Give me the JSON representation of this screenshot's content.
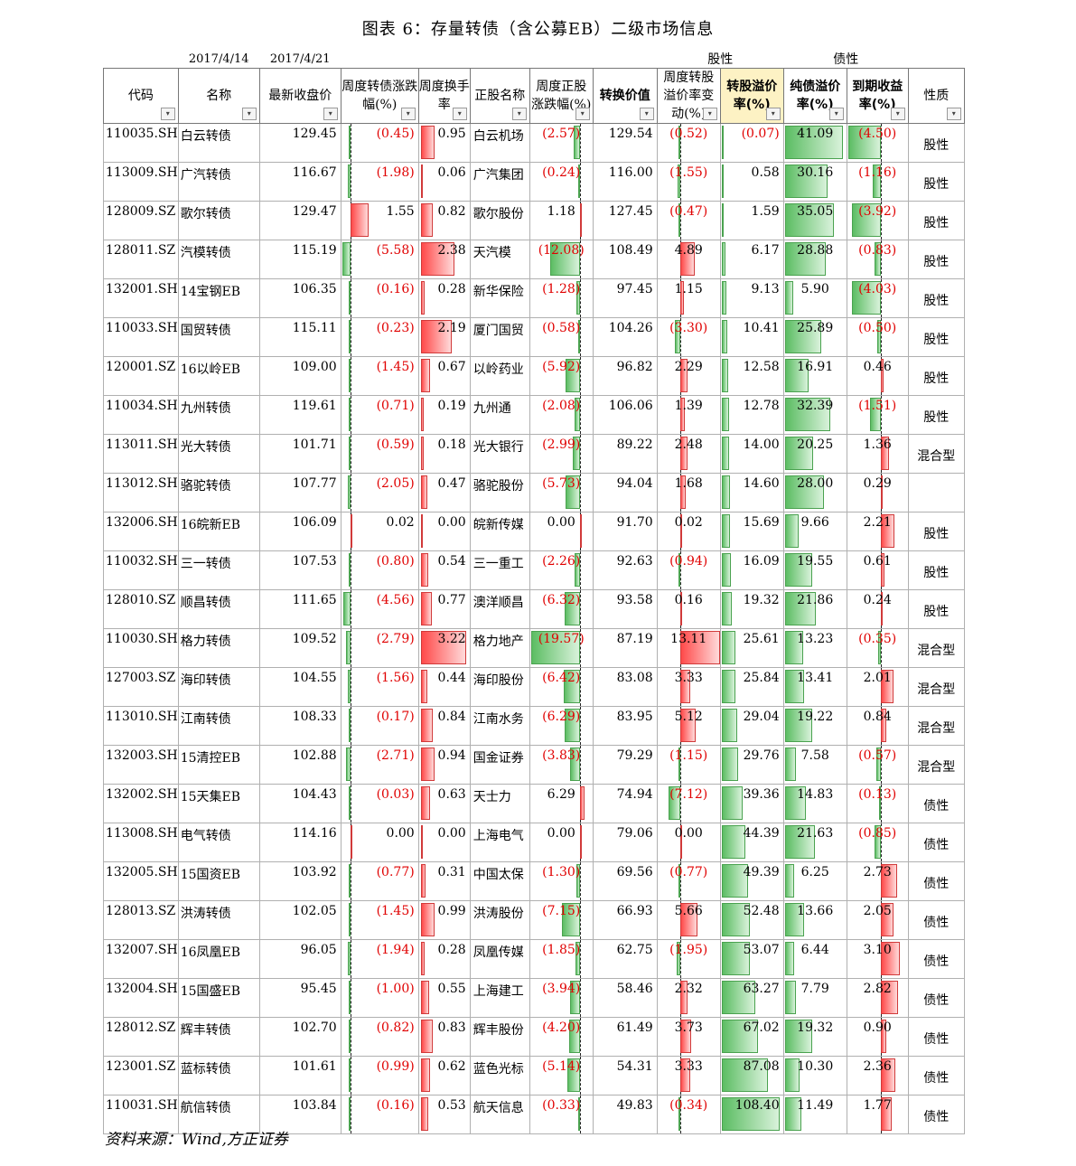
{
  "title": "图表 6：存量转债（含公募EB）二级市场信息",
  "source": "资料来源：Wind,方正证券",
  "dates": {
    "d1": "2017/4/14",
    "d2": "2017/4/21"
  },
  "groups": {
    "stock": "股性",
    "bond": "债性"
  },
  "headers": [
    "代码",
    "名称",
    "最新收盘价",
    "周度转债涨跌幅(%)",
    "周度换手率",
    "正股名称",
    "周度正股涨跌幅(%)",
    "转换价值",
    "周度转股溢价率变动(%)",
    "转股溢价率(%)",
    "纯债溢价率(%)",
    "到期收益率(%)",
    "性质"
  ],
  "rows": [
    {
      "code": "110035.SH",
      "name": "白云转债",
      "close": "129.45",
      "chg": "(0.45)",
      "turn": "0.95",
      "stock": "白云机场",
      "schg": "(2.57)",
      "conv": "129.54",
      "pchg": "(0.52)",
      "prem": "(0.07)",
      "bprem": "41.09",
      "ytm": "(4.50)",
      "nature": "股性"
    },
    {
      "code": "113009.SH",
      "name": "广汽转债",
      "close": "116.67",
      "chg": "(1.98)",
      "turn": "0.06",
      "stock": "广汽集团",
      "schg": "(0.24)",
      "conv": "116.00",
      "pchg": "(1.55)",
      "prem": "0.58",
      "bprem": "30.16",
      "ytm": "(1.16)",
      "nature": "股性"
    },
    {
      "code": "128009.SZ",
      "name": "歌尔转债",
      "close": "129.47",
      "chg": "1.55",
      "turn": "0.82",
      "stock": "歌尔股份",
      "schg": "1.18",
      "conv": "127.45",
      "pchg": "(0.47)",
      "prem": "1.59",
      "bprem": "35.05",
      "ytm": "(3.92)",
      "nature": "股性"
    },
    {
      "code": "128011.SZ",
      "name": "汽模转债",
      "close": "115.19",
      "chg": "(5.58)",
      "turn": "2.38",
      "stock": "天汽模",
      "schg": "(12.08)",
      "conv": "108.49",
      "pchg": "4.89",
      "prem": "6.17",
      "bprem": "28.88",
      "ytm": "(0.83)",
      "nature": "股性"
    },
    {
      "code": "132001.SH",
      "name": "14宝钢EB",
      "close": "106.35",
      "chg": "(0.16)",
      "turn": "0.28",
      "stock": "新华保险",
      "schg": "(1.28)",
      "conv": "97.45",
      "pchg": "1.15",
      "prem": "9.13",
      "bprem": "5.90",
      "ytm": "(4.03)",
      "nature": "股性"
    },
    {
      "code": "110033.SH",
      "name": "国贸转债",
      "close": "115.11",
      "chg": "(0.23)",
      "turn": "2.19",
      "stock": "厦门国贸",
      "schg": "(0.58)",
      "conv": "104.26",
      "pchg": "(3.30)",
      "prem": "10.41",
      "bprem": "25.89",
      "ytm": "(0.50)",
      "nature": "股性"
    },
    {
      "code": "120001.SZ",
      "name": "16以岭EB",
      "close": "109.00",
      "chg": "(1.45)",
      "turn": "0.67",
      "stock": "以岭药业",
      "schg": "(5.92)",
      "conv": "96.82",
      "pchg": "2.29",
      "prem": "12.58",
      "bprem": "16.91",
      "ytm": "0.46",
      "nature": "股性"
    },
    {
      "code": "110034.SH",
      "name": "九州转债",
      "close": "119.61",
      "chg": "(0.71)",
      "turn": "0.19",
      "stock": "九州通",
      "schg": "(2.08)",
      "conv": "106.06",
      "pchg": "1.39",
      "prem": "12.78",
      "bprem": "32.39",
      "ytm": "(1.51)",
      "nature": "股性"
    },
    {
      "code": "113011.SH",
      "name": "光大转债",
      "close": "101.71",
      "chg": "(0.59)",
      "turn": "0.18",
      "stock": "光大银行",
      "schg": "(2.99)",
      "conv": "89.22",
      "pchg": "2.48",
      "prem": "14.00",
      "bprem": "20.25",
      "ytm": "1.36",
      "nature": "混合型"
    },
    {
      "code": "113012.SH",
      "name": "骆驼转债",
      "close": "107.77",
      "chg": "(2.05)",
      "turn": "0.47",
      "stock": "骆驼股份",
      "schg": "(5.73)",
      "conv": "94.04",
      "pchg": "1.68",
      "prem": "14.60",
      "bprem": "28.00",
      "ytm": "0.29",
      "nature": ""
    },
    {
      "code": "132006.SH",
      "name": "16皖新EB",
      "close": "106.09",
      "chg": "0.02",
      "turn": "0.00",
      "stock": "皖新传媒",
      "schg": "0.00",
      "conv": "91.70",
      "pchg": "0.02",
      "prem": "15.69",
      "bprem": "9.66",
      "ytm": "2.21",
      "nature": "股性"
    },
    {
      "code": "110032.SH",
      "name": "三一转债",
      "close": "107.53",
      "chg": "(0.80)",
      "turn": "0.54",
      "stock": "三一重工",
      "schg": "(2.26)",
      "conv": "92.63",
      "pchg": "(0.94)",
      "prem": "16.09",
      "bprem": "19.55",
      "ytm": "0.61",
      "nature": "股性"
    },
    {
      "code": "128010.SZ",
      "name": "顺昌转债",
      "close": "111.65",
      "chg": "(4.56)",
      "turn": "0.77",
      "stock": "澳洋顺昌",
      "schg": "(6.32)",
      "conv": "93.58",
      "pchg": "0.16",
      "prem": "19.32",
      "bprem": "21.86",
      "ytm": "0.24",
      "nature": "股性"
    },
    {
      "code": "110030.SH",
      "name": "格力转债",
      "close": "109.52",
      "chg": "(2.79)",
      "turn": "3.22",
      "stock": "格力地产",
      "schg": "(19.57)",
      "conv": "87.19",
      "pchg": "13.11",
      "prem": "25.61",
      "bprem": "13.23",
      "ytm": "(0.35)",
      "nature": "混合型"
    },
    {
      "code": "127003.SZ",
      "name": "海印转债",
      "close": "104.55",
      "chg": "(1.56)",
      "turn": "0.44",
      "stock": "海印股份",
      "schg": "(6.42)",
      "conv": "83.08",
      "pchg": "3.33",
      "prem": "25.84",
      "bprem": "13.41",
      "ytm": "2.01",
      "nature": "混合型"
    },
    {
      "code": "113010.SH",
      "name": "江南转债",
      "close": "108.33",
      "chg": "(0.17)",
      "turn": "0.84",
      "stock": "江南水务",
      "schg": "(6.29)",
      "conv": "83.95",
      "pchg": "5.12",
      "prem": "29.04",
      "bprem": "19.22",
      "ytm": "0.84",
      "nature": "混合型"
    },
    {
      "code": "132003.SH",
      "name": "15清控EB",
      "close": "102.88",
      "chg": "(2.71)",
      "turn": "0.94",
      "stock": "国金证券",
      "schg": "(3.83)",
      "conv": "79.29",
      "pchg": "(1.15)",
      "prem": "29.76",
      "bprem": "7.58",
      "ytm": "(0.57)",
      "nature": "混合型"
    },
    {
      "code": "132002.SH",
      "name": "15天集EB",
      "close": "104.43",
      "chg": "(0.03)",
      "turn": "0.63",
      "stock": "天士力",
      "schg": "6.29",
      "conv": "74.94",
      "pchg": "(7.12)",
      "prem": "39.36",
      "bprem": "14.83",
      "ytm": "(0.13)",
      "nature": "债性"
    },
    {
      "code": "113008.SH",
      "name": "电气转债",
      "close": "114.16",
      "chg": "0.00",
      "turn": "0.00",
      "stock": "上海电气",
      "schg": "0.00",
      "conv": "79.06",
      "pchg": "0.00",
      "prem": "44.39",
      "bprem": "21.63",
      "ytm": "(0.85)",
      "nature": "债性"
    },
    {
      "code": "132005.SH",
      "name": "15国资EB",
      "close": "103.92",
      "chg": "(0.77)",
      "turn": "0.31",
      "stock": "中国太保",
      "schg": "(1.30)",
      "conv": "69.56",
      "pchg": "(0.77)",
      "prem": "49.39",
      "bprem": "6.25",
      "ytm": "2.73",
      "nature": "债性"
    },
    {
      "code": "128013.SZ",
      "name": "洪涛转债",
      "close": "102.05",
      "chg": "(1.45)",
      "turn": "0.99",
      "stock": "洪涛股份",
      "schg": "(7.15)",
      "conv": "66.93",
      "pchg": "5.66",
      "prem": "52.48",
      "bprem": "13.66",
      "ytm": "2.05",
      "nature": "债性"
    },
    {
      "code": "132007.SH",
      "name": "16凤凰EB",
      "close": "96.05",
      "chg": "(1.94)",
      "turn": "0.28",
      "stock": "凤凰传媒",
      "schg": "(1.85)",
      "conv": "62.75",
      "pchg": "(1.95)",
      "prem": "53.07",
      "bprem": "6.44",
      "ytm": "3.10",
      "nature": "债性"
    },
    {
      "code": "132004.SH",
      "name": "15国盛EB",
      "close": "95.45",
      "chg": "(1.00)",
      "turn": "0.55",
      "stock": "上海建工",
      "schg": "(3.94)",
      "conv": "58.46",
      "pchg": "2.32",
      "prem": "63.27",
      "bprem": "7.79",
      "ytm": "2.82",
      "nature": "债性"
    },
    {
      "code": "128012.SZ",
      "name": "辉丰转债",
      "close": "102.70",
      "chg": "(0.82)",
      "turn": "0.83",
      "stock": "辉丰股份",
      "schg": "(4.20)",
      "conv": "61.49",
      "pchg": "3.73",
      "prem": "67.02",
      "bprem": "19.32",
      "ytm": "0.90",
      "nature": "债性"
    },
    {
      "code": "123001.SZ",
      "name": "蓝标转债",
      "close": "101.61",
      "chg": "(0.99)",
      "turn": "0.62",
      "stock": "蓝色光标",
      "schg": "(5.14)",
      "conv": "54.31",
      "pchg": "3.33",
      "prem": "87.08",
      "bprem": "10.30",
      "ytm": "2.36",
      "nature": "债性"
    },
    {
      "code": "110031.SH",
      "name": "航信转债",
      "close": "103.84",
      "chg": "(0.16)",
      "turn": "0.53",
      "stock": "航天信息",
      "schg": "(0.33)",
      "conv": "49.83",
      "pchg": "(0.34)",
      "prem": "108.40",
      "bprem": "11.49",
      "ytm": "1.77",
      "nature": "债性"
    }
  ],
  "colors": {
    "pos_bar": "#ff4a4a",
    "neg_bar": "#5cbd63",
    "neg_text": "#e00000",
    "highlight": "#fdf2c4"
  }
}
